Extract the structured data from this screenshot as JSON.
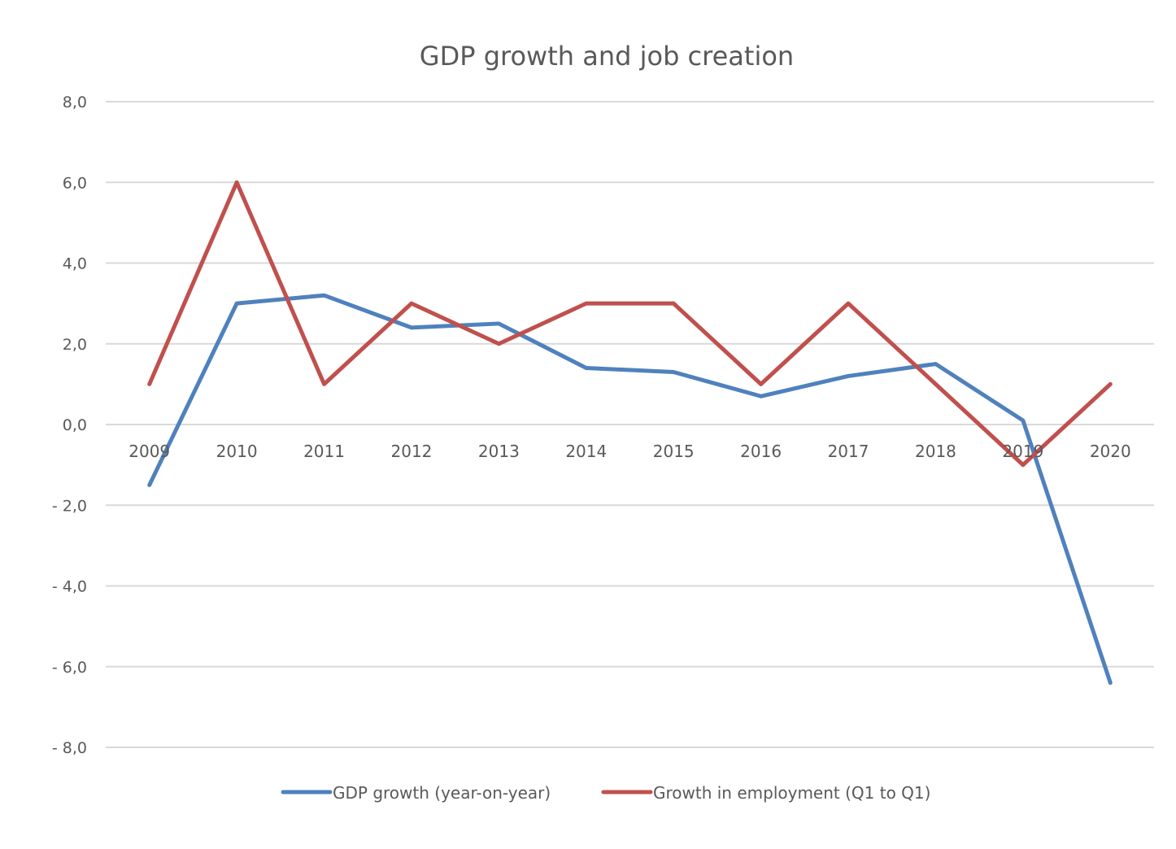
{
  "chart_data": {
    "type": "line",
    "title": "GDP growth and job creation",
    "xlabel": "",
    "ylabel": "",
    "categories": [
      "2009",
      "2010",
      "2011",
      "2012",
      "2013",
      "2014",
      "2015",
      "2016",
      "2017",
      "2018",
      "2019",
      "2020"
    ],
    "ylim": [
      -8,
      8
    ],
    "yticks": [
      8,
      6,
      4,
      2,
      0,
      -2,
      -4,
      -6,
      -8
    ],
    "ytick_labels": [
      "8,0",
      "6,0",
      "4,0",
      "2,0",
      "0,0",
      "- 2,0",
      "- 4,0",
      "- 6,0",
      "- 8,0"
    ],
    "grid": true,
    "legend_position": "bottom",
    "series": [
      {
        "name": "GDP growth (year-on-year)",
        "color": "#4F81BD",
        "values": [
          -1.5,
          3.0,
          3.2,
          2.4,
          2.5,
          1.4,
          1.3,
          0.7,
          1.2,
          1.5,
          0.1,
          -6.4
        ]
      },
      {
        "name": "Growth in employment (Q1 to Q1)",
        "color": "#C0504D",
        "values": [
          1.0,
          6.0,
          1.0,
          3.0,
          2.0,
          3.0,
          3.0,
          1.0,
          3.0,
          1.0,
          -1.0,
          1.0
        ]
      }
    ]
  }
}
